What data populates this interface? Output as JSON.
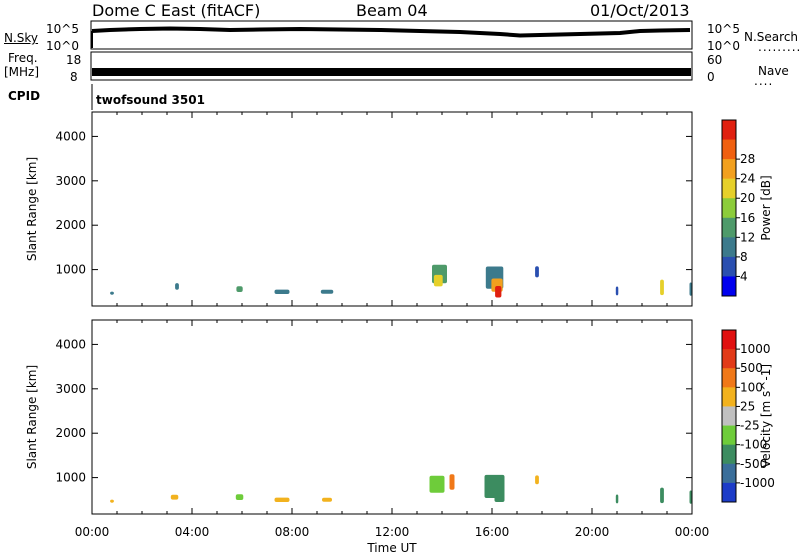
{
  "header": {
    "site": "Dome C East (fitACF)",
    "beam": "Beam 04",
    "date": "01/Oct/2013"
  },
  "status_panel": {
    "nsky_label": "N.Sky",
    "nsky_hi": "10^5",
    "nsky_lo": "10^0",
    "nsearch_hi": "10^5",
    "nsearch_lo": "10^0",
    "nsearch_label": "N.Search",
    "freq_label": "Freq.",
    "freq_unit": "[MHz]",
    "freq_hi": "18",
    "freq_lo": "8",
    "nave_hi": "60",
    "nave_lo": "0",
    "nave_label": "Nave",
    "cpid_label": "CPID",
    "cpid_value": "twofsound 3501"
  },
  "chart_data": [
    {
      "type": "heatmap",
      "name": "power",
      "ylabel": "Slant Range [km]",
      "xlabel": "Time UT",
      "x_ticks": [
        "00:00",
        "04:00",
        "08:00",
        "12:00",
        "16:00",
        "20:00",
        "00:00"
      ],
      "y_ticks": [
        1000,
        2000,
        3000,
        4000
      ],
      "ylim": [
        180,
        4550
      ],
      "xlim_hours": [
        0,
        24
      ],
      "colorbar_label": "Power [dB]",
      "colorbar_ticks": [
        "4",
        "8",
        "12",
        "16",
        "20",
        "24",
        "28"
      ],
      "colorbar_colors": [
        "#0000ee",
        "#2a4fb0",
        "#3c7a8c",
        "#4e9a6a",
        "#8ccc3a",
        "#e6d02a",
        "#f2a01e",
        "#f06010",
        "#e02010"
      ],
      "blobs": [
        {
          "t": 13.9,
          "r": 900,
          "dt": 0.6,
          "dr": 420,
          "c": 3
        },
        {
          "t": 13.85,
          "r": 750,
          "dt": 0.35,
          "dr": 260,
          "c": 5
        },
        {
          "t": 16.1,
          "r": 820,
          "dt": 0.7,
          "dr": 500,
          "c": 2
        },
        {
          "t": 16.2,
          "r": 650,
          "dt": 0.45,
          "dr": 300,
          "c": 6
        },
        {
          "t": 16.25,
          "r": 500,
          "dt": 0.25,
          "dr": 260,
          "c": 8
        },
        {
          "t": 17.8,
          "r": 950,
          "dt": 0.15,
          "dr": 250,
          "c": 1
        },
        {
          "t": 5.9,
          "r": 560,
          "dt": 0.25,
          "dr": 130,
          "c": 3
        },
        {
          "t": 3.4,
          "r": 620,
          "dt": 0.15,
          "dr": 150,
          "c": 2
        },
        {
          "t": 7.6,
          "r": 500,
          "dt": 0.6,
          "dr": 100,
          "c": 2
        },
        {
          "t": 9.4,
          "r": 500,
          "dt": 0.5,
          "dr": 90,
          "c": 2
        },
        {
          "t": 0.8,
          "r": 470,
          "dt": 0.15,
          "dr": 70,
          "c": 2
        },
        {
          "t": 21.0,
          "r": 520,
          "dt": 0.1,
          "dr": 200,
          "c": 1
        },
        {
          "t": 22.8,
          "r": 600,
          "dt": 0.15,
          "dr": 350,
          "c": 5
        },
        {
          "t": 23.95,
          "r": 560,
          "dt": 0.1,
          "dr": 300,
          "c": 2
        }
      ]
    },
    {
      "type": "heatmap",
      "name": "velocity",
      "ylabel": "Slant Range [km]",
      "xlabel": "Time UT",
      "x_ticks": [
        "00:00",
        "04:00",
        "08:00",
        "12:00",
        "16:00",
        "20:00",
        "00:00"
      ],
      "y_ticks": [
        1000,
        2000,
        3000,
        4000
      ],
      "ylim": [
        180,
        4550
      ],
      "xlim_hours": [
        0,
        24
      ],
      "colorbar_label": "Velocity [m s^-1]",
      "colorbar_ticks": [
        "1000",
        "500",
        "100",
        "25",
        "-25",
        "-100",
        "-500",
        "-1000"
      ],
      "colorbar_colors": [
        "#1c3cc8",
        "#3a6e9a",
        "#3c8c60",
        "#6ecc3a",
        "#c0c0c0",
        "#f2b21e",
        "#f07818",
        "#e23a18",
        "#e01010"
      ],
      "blobs": [
        {
          "t": 13.8,
          "r": 850,
          "dt": 0.6,
          "dr": 380,
          "c": 3
        },
        {
          "t": 14.4,
          "r": 900,
          "dt": 0.2,
          "dr": 350,
          "c": 6
        },
        {
          "t": 16.1,
          "r": 800,
          "dt": 0.8,
          "dr": 520,
          "c": 2
        },
        {
          "t": 16.3,
          "r": 600,
          "dt": 0.4,
          "dr": 300,
          "c": 2
        },
        {
          "t": 17.8,
          "r": 950,
          "dt": 0.15,
          "dr": 200,
          "c": 5
        },
        {
          "t": 5.9,
          "r": 560,
          "dt": 0.3,
          "dr": 130,
          "c": 3
        },
        {
          "t": 3.3,
          "r": 560,
          "dt": 0.3,
          "dr": 110,
          "c": 5
        },
        {
          "t": 7.6,
          "r": 500,
          "dt": 0.6,
          "dr": 100,
          "c": 5
        },
        {
          "t": 9.4,
          "r": 500,
          "dt": 0.4,
          "dr": 90,
          "c": 5
        },
        {
          "t": 0.8,
          "r": 470,
          "dt": 0.15,
          "dr": 70,
          "c": 5
        },
        {
          "t": 21.0,
          "r": 520,
          "dt": 0.1,
          "dr": 200,
          "c": 2
        },
        {
          "t": 22.8,
          "r": 600,
          "dt": 0.15,
          "dr": 350,
          "c": 2
        },
        {
          "t": 23.95,
          "r": 560,
          "dt": 0.1,
          "dr": 300,
          "c": 2
        }
      ]
    }
  ]
}
